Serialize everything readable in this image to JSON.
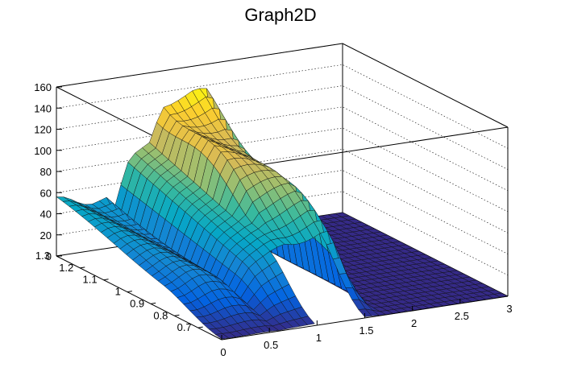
{
  "chart_data": {
    "type": "surface",
    "title": "Graph2D",
    "xlabel": "",
    "ylabel": "",
    "zlabel": "",
    "x_range": [
      0,
      3
    ],
    "y_range": [
      0.6,
      1.3
    ],
    "z_range": [
      0,
      160
    ],
    "x_ticks": [
      "0",
      "0.5",
      "1",
      "1.5",
      "2",
      "2.5",
      "3"
    ],
    "y_ticks": [
      "0.7",
      "0.8",
      "0.9",
      "1",
      "1.1",
      "1.2",
      "1.3"
    ],
    "z_ticks": [
      "0",
      "20",
      "40",
      "60",
      "80",
      "100",
      "120",
      "140",
      "160"
    ],
    "grid": true,
    "palette": "kBird",
    "colors": [
      "#352a87",
      "#0363e1",
      "#1485d4",
      "#06a7c6",
      "#38b99e",
      "#92bf73",
      "#d9ba56",
      "#fcce2e",
      "#f9fb0e"
    ],
    "surface_description": "plateau near x=0-0.6 (z 40-60), ridge along x=0.6-1.0 rising with y, peak region x=1.0-1.6 around z 120-140 at high y, zero floor for x>1.7 and low y"
  }
}
